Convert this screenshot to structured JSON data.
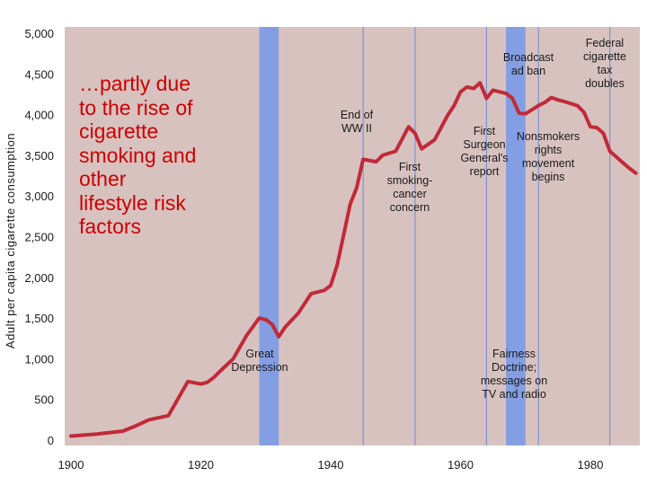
{
  "overlay_text": [
    "…partly due",
    "to the rise of",
    "cigarette",
    "smoking and",
    "other",
    "lifestyle risk",
    "factors"
  ],
  "colors": {
    "plot_background": "#d8c2c0",
    "line": "#c12a38",
    "bands": "#7a9ae6",
    "event_lines": "#7c93d6",
    "overlay_text": "#cc0000"
  },
  "chart_data": {
    "type": "line",
    "title": "",
    "xlabel": "",
    "ylabel": "Adult per capita cigarette consumption",
    "xlim": [
      1900,
      1987
    ],
    "ylim": [
      0,
      5000
    ],
    "x_ticks": [
      1900,
      1920,
      1940,
      1960,
      1980
    ],
    "y_ticks": [
      0,
      500,
      1000,
      1500,
      2000,
      2500,
      3000,
      3500,
      4000,
      4500,
      5000
    ],
    "y_tick_labels": [
      "0",
      "500",
      "1,000",
      "1,500",
      "2,000",
      "2,500",
      "3,000",
      "3,500",
      "4,000",
      "4,500",
      "5,000"
    ],
    "grid": false,
    "series": [
      {
        "x": [
          1900,
          1904,
          1908,
          1910,
          1912,
          1915,
          1917,
          1918,
          1920,
          1921,
          1922,
          1923,
          1925,
          1927,
          1929,
          1930,
          1931,
          1932,
          1933,
          1935,
          1937,
          1939,
          1940,
          1941,
          1942,
          1943,
          1944,
          1945,
          1947,
          1948,
          1950,
          1951,
          1952,
          1953,
          1954,
          1956,
          1958,
          1959,
          1960,
          1961,
          1962,
          1963,
          1964,
          1965,
          1966,
          1967,
          1968,
          1969,
          1970,
          1971,
          1972,
          1973,
          1974,
          1975,
          1976,
          1978,
          1979,
          1980,
          1981,
          1982,
          1983,
          1984,
          1985,
          1986,
          1987
        ],
        "y": [
          50,
          75,
          110,
          175,
          250,
          300,
          580,
          720,
          690,
          710,
          770,
          850,
          1000,
          1280,
          1500,
          1480,
          1420,
          1270,
          1390,
          1560,
          1800,
          1840,
          1900,
          2150,
          2520,
          2900,
          3100,
          3450,
          3420,
          3500,
          3550,
          3700,
          3850,
          3770,
          3580,
          3690,
          3990,
          4110,
          4280,
          4340,
          4320,
          4390,
          4200,
          4300,
          4280,
          4260,
          4200,
          4020,
          4010,
          4060,
          4110,
          4150,
          4210,
          4180,
          4160,
          4110,
          4030,
          3850,
          3840,
          3770,
          3550,
          3480,
          3410,
          3340,
          3280
        ]
      }
    ],
    "bands": [
      {
        "from": 1929,
        "to": 1932
      },
      {
        "from": 1967,
        "to": 1970
      }
    ],
    "event_lines": [
      1945,
      1953,
      1964,
      1972,
      1983
    ],
    "annotations": [
      {
        "label": [
          "Great",
          "Depression"
        ],
        "year": 1931
      },
      {
        "label": [
          "End of",
          "WW II"
        ],
        "year": 1945
      },
      {
        "label": [
          "First",
          "smoking-",
          "cancer",
          "concern"
        ],
        "year": 1953
      },
      {
        "label": [
          "First",
          "Surgeon",
          "General's",
          "report"
        ],
        "year": 1964
      },
      {
        "label": [
          "Broadcast",
          "ad ban"
        ],
        "year": 1970
      },
      {
        "label": [
          "Nonsmokers",
          "rights",
          "movement",
          "begins"
        ],
        "year": 1972
      },
      {
        "label": [
          "Fairness",
          "Doctrine;",
          "messages on",
          "TV and radio"
        ],
        "year": 1968
      },
      {
        "label": [
          "Federal",
          "cigarette",
          "tax",
          "doubles"
        ],
        "year": 1983
      }
    ]
  }
}
